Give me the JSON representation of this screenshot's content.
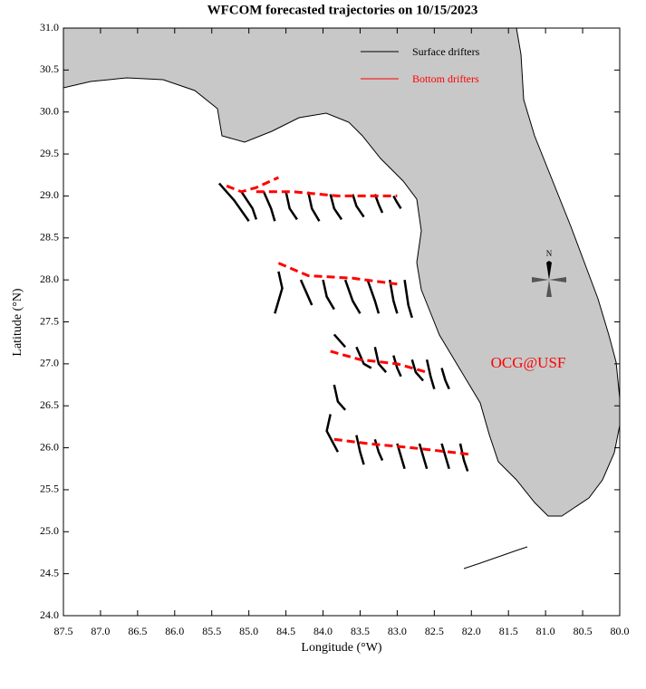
{
  "chart_data": {
    "type": "trajectory",
    "title": "WFCOM forecasted trajectories on 10/15/2023",
    "xlabel": "Longitude (°W)",
    "ylabel": "Latitude (°N)",
    "annotation": "OCG@USF",
    "compass_label": "N",
    "xlim": [
      87.5,
      80.0
    ],
    "ylim": [
      24.0,
      31.0
    ],
    "xticks": [
      87.5,
      {
        "value": 87,
        "label": "87.0"
      },
      86.5,
      {
        "value": 86,
        "label": "86.0"
      },
      85.5,
      {
        "value": 85,
        "label": "85.0"
      },
      84.5,
      {
        "value": 84,
        "label": "84.0"
      },
      83.5,
      {
        "value": 83,
        "label": "83.0"
      },
      82.5,
      {
        "value": 82,
        "label": "82.0"
      },
      81.5,
      {
        "value": 81,
        "label": "81.0"
      },
      80.5,
      {
        "value": 80,
        "label": "80.0"
      }
    ],
    "yticks": [
      {
        "value": 24,
        "label": "24.0"
      },
      24.5,
      {
        "value": 25,
        "label": "25.0"
      },
      25.5,
      {
        "value": 26,
        "label": "26.0"
      },
      26.5,
      {
        "value": 27,
        "label": "27.0"
      },
      27.5,
      {
        "value": 28,
        "label": "28.0"
      },
      28.5,
      {
        "value": 29,
        "label": "29.0"
      },
      29.5,
      {
        "value": 30,
        "label": "30.0"
      },
      30.5,
      {
        "value": 31,
        "label": "31.0"
      }
    ],
    "series": [
      {
        "name": "Surface drifters",
        "color": "#000000",
        "tracks": [
          {
            "x": [
              85.4,
              85.2,
              85.0
            ],
            "y": [
              29.15,
              28.95,
              28.7
            ]
          },
          {
            "x": [
              85.1,
              84.95,
              84.9
            ],
            "y": [
              29.05,
              28.85,
              28.72
            ]
          },
          {
            "x": [
              84.8,
              84.7,
              84.65
            ],
            "y": [
              29.05,
              28.85,
              28.7
            ]
          },
          {
            "x": [
              84.5,
              84.45,
              84.35
            ],
            "y": [
              29.05,
              28.85,
              28.72
            ]
          },
          {
            "x": [
              84.2,
              84.15,
              84.05
            ],
            "y": [
              29.05,
              28.85,
              28.7
            ]
          },
          {
            "x": [
              83.9,
              83.85,
              83.75
            ],
            "y": [
              29.02,
              28.85,
              28.72
            ]
          },
          {
            "x": [
              83.6,
              83.55,
              83.45
            ],
            "y": [
              29.02,
              28.88,
              28.75
            ]
          },
          {
            "x": [
              83.3,
              83.25,
              83.2
            ],
            "y": [
              29.02,
              28.9,
              28.8
            ]
          },
          {
            "x": [
              83.05,
              83.0,
              82.95
            ],
            "y": [
              29.0,
              28.92,
              28.85
            ]
          },
          {
            "x": [
              84.6,
              84.55,
              84.65
            ],
            "y": [
              28.1,
              27.9,
              27.6
            ]
          },
          {
            "x": [
              84.3,
              84.2,
              84.15
            ],
            "y": [
              28.0,
              27.8,
              27.7
            ]
          },
          {
            "x": [
              84.0,
              83.95,
              83.85
            ],
            "y": [
              28.0,
              27.8,
              27.65
            ]
          },
          {
            "x": [
              83.7,
              83.6,
              83.5
            ],
            "y": [
              28.0,
              27.75,
              27.6
            ]
          },
          {
            "x": [
              83.4,
              83.3,
              83.25
            ],
            "y": [
              28.0,
              27.75,
              27.6
            ]
          },
          {
            "x": [
              83.1,
              83.05,
              83.0
            ],
            "y": [
              28.0,
              27.75,
              27.6
            ]
          },
          {
            "x": [
              82.9,
              82.85,
              82.8
            ],
            "y": [
              28.0,
              27.7,
              27.55
            ]
          },
          {
            "x": [
              83.85,
              83.75,
              83.7
            ],
            "y": [
              27.35,
              27.25,
              27.2
            ]
          },
          {
            "x": [
              83.55,
              83.45,
              83.35
            ],
            "y": [
              27.2,
              27.0,
              26.95
            ]
          },
          {
            "x": [
              83.3,
              83.25,
              83.15
            ],
            "y": [
              27.2,
              27.0,
              26.9
            ]
          },
          {
            "x": [
              83.05,
              83.0,
              82.95
            ],
            "y": [
              27.1,
              26.95,
              26.85
            ]
          },
          {
            "x": [
              82.8,
              82.75,
              82.65
            ],
            "y": [
              27.05,
              26.9,
              26.8
            ]
          },
          {
            "x": [
              82.6,
              82.55,
              82.5
            ],
            "y": [
              27.05,
              26.85,
              26.7
            ]
          },
          {
            "x": [
              82.4,
              82.35,
              82.3
            ],
            "y": [
              26.95,
              26.8,
              26.7
            ]
          },
          {
            "x": [
              83.85,
              83.8,
              83.7
            ],
            "y": [
              26.75,
              26.55,
              26.45
            ]
          },
          {
            "x": [
              83.9,
              83.95,
              83.8
            ],
            "y": [
              26.4,
              26.2,
              25.95
            ]
          },
          {
            "x": [
              83.55,
              83.5,
              83.45
            ],
            "y": [
              26.15,
              25.95,
              25.8
            ]
          },
          {
            "x": [
              83.3,
              83.25,
              83.2
            ],
            "y": [
              26.1,
              25.95,
              25.85
            ]
          },
          {
            "x": [
              83.0,
              82.95,
              82.9
            ],
            "y": [
              26.05,
              25.9,
              25.75
            ]
          },
          {
            "x": [
              82.7,
              82.65,
              82.6
            ],
            "y": [
              26.05,
              25.9,
              25.75
            ]
          },
          {
            "x": [
              82.4,
              82.35,
              82.3
            ],
            "y": [
              26.05,
              25.9,
              25.75
            ]
          },
          {
            "x": [
              82.15,
              82.1,
              82.05
            ],
            "y": [
              26.05,
              25.85,
              25.72
            ]
          }
        ]
      },
      {
        "name": "Bottom drifters",
        "color": "#ff0000",
        "tracks": [
          {
            "x": [
              85.3,
              85.1,
              84.9,
              84.6
            ],
            "y": [
              29.12,
              29.05,
              29.1,
              29.22
            ]
          },
          {
            "x": [
              84.9,
              84.4,
              83.8,
              83.0
            ],
            "y": [
              29.05,
              29.05,
              29.0,
              29.0
            ]
          },
          {
            "x": [
              84.6,
              84.2,
              83.6,
              83.0
            ],
            "y": [
              28.2,
              28.05,
              28.02,
              27.95
            ]
          },
          {
            "x": [
              83.9,
              83.5,
              83.0,
              82.6
            ],
            "y": [
              27.15,
              27.05,
              27.0,
              26.9
            ]
          },
          {
            "x": [
              83.85,
              83.4,
              82.8,
              82.0
            ],
            "y": [
              26.1,
              26.05,
              26.0,
              25.92
            ]
          }
        ]
      }
    ]
  }
}
